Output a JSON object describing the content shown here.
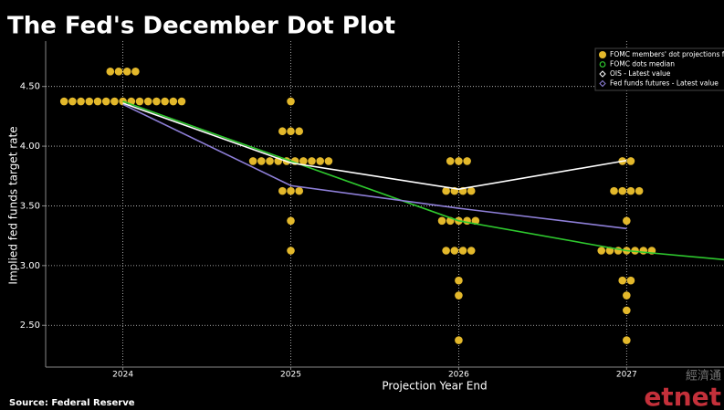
{
  "chart_data": {
    "type": "scatter",
    "title": "The Fed's December Dot Plot",
    "x_label": "Projection Year End",
    "y_label": "Implied fed funds target rate",
    "source": "Source: Federal Reserve",
    "watermark": "etnet",
    "watermark_cn": "經濟通",
    "legend": "top-right",
    "grid": true,
    "xlim": [
      2023.54,
      2027.58
    ],
    "xticks": [
      2024,
      2025,
      2026,
      2027
    ],
    "ylim": [
      2.15,
      4.88
    ],
    "yticks": [
      {
        "value": 2.5,
        "label": "2.50"
      },
      {
        "value": 3,
        "label": "3.00"
      },
      {
        "value": 3.5,
        "label": "3.50"
      },
      {
        "value": 4,
        "label": "4.00"
      },
      {
        "value": 4.5,
        "label": "4.50"
      }
    ],
    "dots": {
      "name": "FOMC members' dot projections f",
      "color": "#e3b82b",
      "x": [
        2024,
        2024,
        2024,
        2024,
        2024,
        2024,
        2024,
        2024,
        2024,
        2024,
        2024,
        2024,
        2024,
        2024,
        2024,
        2024,
        2024,
        2024,
        2024,
        2025,
        2025,
        2025,
        2025,
        2025,
        2025,
        2025,
        2025,
        2025,
        2025,
        2025,
        2025,
        2025,
        2025,
        2025,
        2025,
        2025,
        2025,
        2025,
        2026,
        2026,
        2026,
        2026,
        2026,
        2026,
        2026,
        2026,
        2026,
        2026,
        2026,
        2026,
        2026,
        2026,
        2026,
        2026,
        2026,
        2026,
        2026,
        2027,
        2027,
        2027,
        2027,
        2027,
        2027,
        2027,
        2027,
        2027,
        2027,
        2027,
        2027,
        2027,
        2027,
        2027,
        2027,
        2027,
        2027,
        2027
      ],
      "values": [
        4.625,
        4.625,
        4.625,
        4.625,
        4.375,
        4.375,
        4.375,
        4.375,
        4.375,
        4.375,
        4.375,
        4.375,
        4.375,
        4.375,
        4.375,
        4.375,
        4.375,
        4.375,
        4.375,
        4.375,
        4.125,
        4.125,
        4.125,
        3.875,
        3.875,
        3.875,
        3.875,
        3.875,
        3.875,
        3.875,
        3.875,
        3.875,
        3.875,
        3.625,
        3.625,
        3.625,
        3.375,
        3.125,
        3.875,
        3.875,
        3.875,
        3.625,
        3.625,
        3.625,
        3.625,
        3.375,
        3.375,
        3.375,
        3.375,
        3.375,
        3.125,
        3.125,
        3.125,
        3.125,
        2.875,
        2.75,
        2.375,
        3.875,
        3.875,
        3.625,
        3.625,
        3.625,
        3.625,
        3.375,
        3.125,
        3.125,
        3.125,
        3.125,
        3.125,
        3.125,
        3.125,
        2.875,
        2.875,
        2.75,
        2.625,
        2.375
      ]
    },
    "series": [
      {
        "name": "FOMC dots median",
        "color": "#2ec82e",
        "marker": "circle",
        "x": [
          2024,
          2025,
          2026,
          2027,
          2027.58
        ],
        "values": [
          4.375,
          3.875,
          3.375,
          3.125,
          3.05
        ]
      },
      {
        "name": "OIS - Latest value",
        "color": "#ffffff",
        "marker": "diamond",
        "x": [
          2024,
          2025,
          2026,
          2027
        ],
        "values": [
          4.36,
          3.86,
          3.64,
          3.88
        ]
      },
      {
        "name": "Fed funds futures - Latest value",
        "color": "#8e7fd8",
        "marker": "diamond",
        "x": [
          2024,
          2025,
          2026,
          2027
        ],
        "values": [
          4.35,
          3.67,
          3.48,
          3.31
        ]
      }
    ]
  }
}
